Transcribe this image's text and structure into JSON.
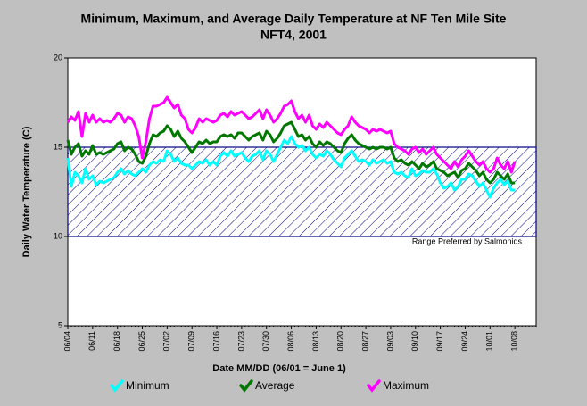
{
  "chart_data": {
    "type": "line",
    "title": "Minimum, Maximum, and Average Daily Temperature at NF Ten Mile Site",
    "subtitle": "NFT4, 2001",
    "y_label": "Daily Water Temperature (C)",
    "x_label": "Date MM/DD (06/01 = June 1)",
    "ylim": [
      5,
      20
    ],
    "yticks": [
      5,
      10,
      15,
      20
    ],
    "band": {
      "ymin": 10,
      "ymax": 15,
      "color": "#000080",
      "label": "Range Preferred by Salmonids"
    },
    "categories": [
      "06/04",
      null,
      null,
      null,
      null,
      null,
      null,
      "06/11",
      null,
      null,
      null,
      null,
      null,
      null,
      "06/18",
      null,
      null,
      null,
      null,
      null,
      null,
      "06/25",
      null,
      null,
      null,
      null,
      null,
      null,
      "07/02",
      null,
      null,
      null,
      null,
      null,
      null,
      "07/09",
      null,
      null,
      null,
      null,
      null,
      null,
      "07/16",
      null,
      null,
      null,
      null,
      null,
      null,
      "07/23",
      null,
      null,
      null,
      null,
      null,
      null,
      "07/30",
      null,
      null,
      null,
      null,
      null,
      null,
      "08/06",
      null,
      null,
      null,
      null,
      null,
      null,
      "08/13",
      null,
      null,
      null,
      null,
      null,
      null,
      "08/20",
      null,
      null,
      null,
      null,
      null,
      null,
      "08/27",
      null,
      null,
      null,
      null,
      null,
      null,
      "09/03",
      null,
      null,
      null,
      null,
      null,
      null,
      "09/10",
      null,
      null,
      null,
      null,
      null,
      null,
      "09/17",
      null,
      null,
      null,
      null,
      null,
      null,
      "09/24",
      null,
      null,
      null,
      null,
      null,
      null,
      "10/01",
      null,
      null,
      null,
      null,
      null,
      null,
      "10/08",
      null,
      null,
      null,
      null,
      null,
      null
    ],
    "series": [
      {
        "name": "Minimum",
        "color": "#00ffff",
        "values": [
          14.4,
          12.8,
          13.6,
          13.4,
          13.0,
          13.8,
          13.2,
          13.4,
          12.9,
          13.1,
          13.0,
          13.1,
          13.2,
          13.3,
          13.6,
          13.8,
          13.5,
          13.7,
          13.5,
          13.4,
          13.6,
          13.8,
          13.6,
          14.0,
          14.2,
          14.1,
          14.3,
          14.2,
          14.8,
          14.6,
          14.2,
          14.4,
          14.1,
          14.0,
          14.0,
          13.8,
          14.0,
          14.2,
          14.1,
          14.3,
          14.0,
          14.2,
          14.0,
          14.5,
          14.7,
          14.5,
          14.8,
          14.5,
          14.6,
          14.7,
          14.4,
          14.2,
          14.5,
          14.6,
          14.8,
          14.3,
          14.8,
          14.6,
          14.2,
          14.6,
          15.0,
          15.4,
          15.2,
          15.6,
          15.2,
          15.0,
          15.1,
          14.8,
          15.0,
          14.6,
          14.4,
          14.6,
          14.5,
          14.8,
          14.6,
          14.3,
          14.1,
          13.9,
          14.4,
          14.6,
          14.8,
          14.5,
          14.2,
          14.3,
          14.2,
          14.0,
          14.3,
          14.1,
          14.2,
          14.3,
          14.1,
          14.2,
          13.6,
          13.5,
          13.6,
          13.4,
          13.3,
          13.8,
          13.4,
          13.5,
          13.7,
          13.6,
          13.6,
          13.8,
          13.5,
          13.0,
          12.7,
          12.8,
          13.0,
          12.6,
          12.8,
          13.2,
          13.2,
          13.5,
          13.4,
          13.1,
          12.8,
          13.0,
          12.6,
          12.2,
          12.7,
          13.0,
          13.2,
          12.9,
          13.1,
          12.6,
          12.6,
          null,
          null,
          null,
          null,
          null,
          null
        ]
      },
      {
        "name": "Average",
        "color": "#007800",
        "values": [
          15.4,
          14.6,
          15.0,
          15.2,
          14.5,
          14.8,
          14.6,
          15.1,
          14.6,
          14.7,
          14.6,
          14.7,
          14.8,
          14.9,
          15.2,
          15.3,
          14.8,
          15.0,
          14.9,
          14.6,
          14.2,
          14.1,
          14.5,
          15.2,
          15.7,
          15.6,
          15.8,
          15.9,
          16.2,
          16.0,
          15.6,
          15.9,
          15.5,
          15.3,
          15.0,
          14.7,
          15.0,
          15.3,
          15.2,
          15.4,
          15.2,
          15.3,
          15.3,
          15.6,
          15.7,
          15.6,
          15.7,
          15.5,
          15.8,
          15.8,
          15.6,
          15.4,
          15.6,
          15.7,
          15.8,
          15.4,
          15.9,
          15.7,
          15.3,
          15.5,
          15.8,
          16.2,
          16.3,
          16.4,
          16.0,
          15.6,
          15.7,
          15.4,
          15.6,
          15.2,
          15.0,
          15.3,
          15.1,
          15.3,
          15.2,
          15.0,
          14.8,
          14.7,
          15.2,
          15.5,
          15.7,
          15.4,
          15.2,
          15.1,
          15.0,
          14.9,
          15.0,
          14.9,
          15.0,
          15.0,
          14.9,
          15.0,
          14.4,
          14.2,
          14.3,
          14.1,
          14.0,
          14.2,
          14.0,
          13.8,
          14.1,
          13.9,
          14.0,
          14.2,
          13.8,
          13.7,
          13.6,
          13.4,
          13.5,
          13.6,
          13.3,
          13.7,
          13.8,
          14.1,
          13.9,
          13.7,
          13.4,
          13.6,
          13.2,
          13.0,
          13.2,
          13.6,
          13.4,
          13.2,
          13.5,
          13.0,
          13.0,
          null,
          null,
          null,
          null,
          null,
          null
        ]
      },
      {
        "name": "Maximum",
        "color": "#ff00ff",
        "values": [
          16.4,
          16.7,
          16.5,
          17.0,
          15.6,
          16.9,
          16.4,
          16.8,
          16.4,
          16.6,
          16.4,
          16.5,
          16.4,
          16.6,
          16.9,
          16.8,
          16.4,
          16.7,
          16.6,
          16.2,
          15.6,
          14.4,
          15.3,
          16.6,
          17.3,
          17.3,
          17.4,
          17.5,
          17.8,
          17.5,
          17.2,
          17.4,
          16.8,
          16.6,
          16.0,
          15.8,
          16.1,
          16.6,
          16.4,
          16.6,
          16.5,
          16.4,
          16.5,
          16.8,
          16.9,
          16.7,
          17.0,
          16.8,
          16.9,
          17.0,
          16.8,
          16.6,
          16.7,
          16.9,
          17.1,
          16.6,
          17.1,
          16.8,
          16.4,
          16.6,
          16.9,
          17.3,
          17.4,
          17.6,
          17.0,
          16.6,
          16.8,
          16.4,
          16.8,
          16.2,
          16.0,
          16.3,
          16.1,
          16.4,
          16.2,
          16.0,
          15.8,
          15.7,
          16.0,
          16.2,
          16.7,
          16.4,
          16.2,
          16.1,
          16.0,
          15.8,
          16.0,
          15.9,
          16.0,
          15.9,
          15.8,
          15.9,
          15.2,
          15.0,
          14.9,
          14.8,
          14.6,
          14.9,
          15.0,
          14.7,
          14.9,
          14.6,
          14.8,
          15.0,
          14.6,
          14.4,
          14.2,
          14.0,
          13.8,
          14.2,
          13.9,
          14.3,
          14.5,
          14.8,
          14.5,
          14.2,
          14.0,
          14.2,
          13.8,
          13.6,
          13.8,
          14.4,
          14.0,
          13.8,
          14.2,
          13.6,
          14.2,
          null,
          null,
          null,
          null,
          null,
          null
        ]
      }
    ]
  }
}
